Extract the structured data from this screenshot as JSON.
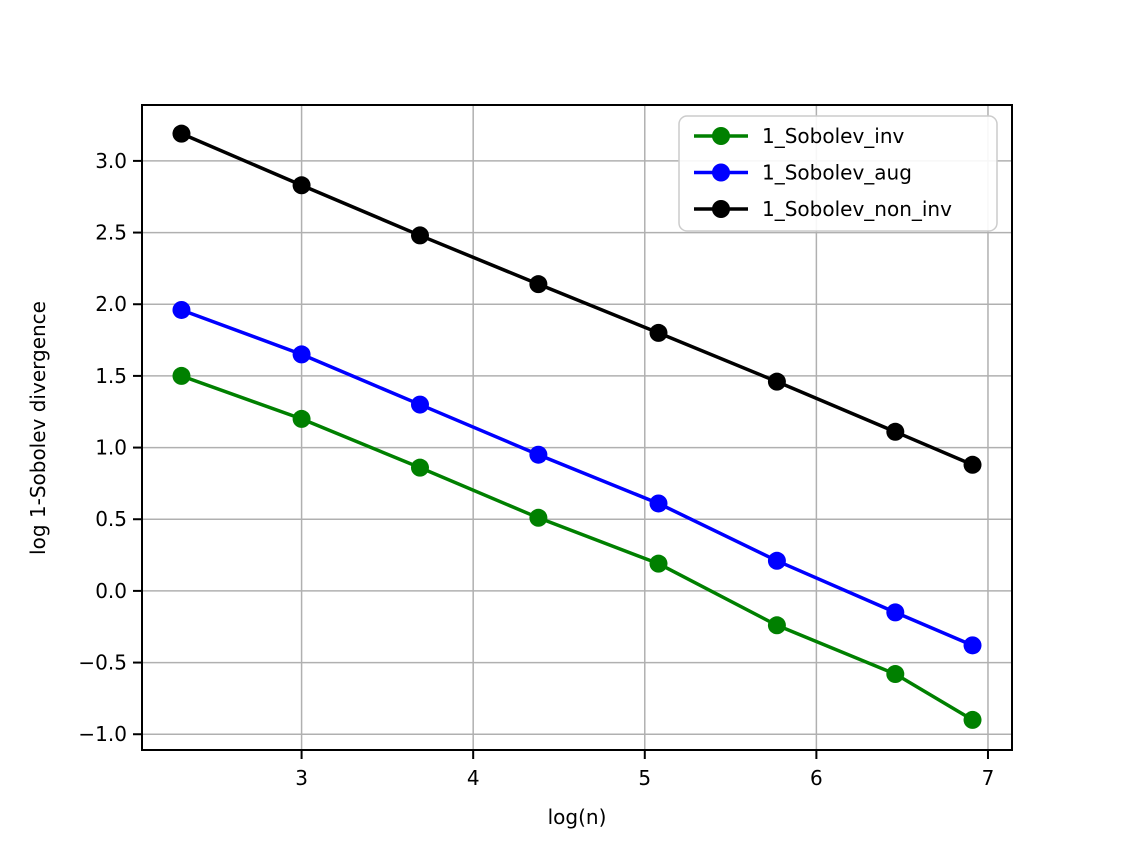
{
  "figure": {
    "background": "#ffffff"
  },
  "chart_data": {
    "type": "line",
    "title": "",
    "xlabel": "log(n)",
    "ylabel": "log 1-Sobolev divergence",
    "x": [
      2.3,
      3.0,
      3.69,
      4.38,
      5.08,
      5.77,
      6.46,
      6.91
    ],
    "series": [
      {
        "name": "1_Sobolev_inv",
        "color": "#008000",
        "values": [
          1.5,
          1.2,
          0.86,
          0.51,
          0.19,
          -0.24,
          -0.58,
          -0.9
        ]
      },
      {
        "name": "1_Sobolev_aug",
        "color": "#0000ff",
        "values": [
          1.96,
          1.65,
          1.3,
          0.95,
          0.61,
          0.21,
          -0.15,
          -0.38
        ]
      },
      {
        "name": "1_Sobolev_non_inv",
        "color": "#000000",
        "values": [
          3.19,
          2.83,
          2.48,
          2.14,
          1.8,
          1.46,
          1.11,
          0.88
        ]
      }
    ],
    "xlim": [
      2.07,
      7.14
    ],
    "ylim": [
      -1.11,
      3.39
    ],
    "xticks": {
      "values": [
        3,
        4,
        5,
        6,
        7
      ],
      "labels": [
        "3",
        "4",
        "5",
        "6",
        "7"
      ]
    },
    "yticks": {
      "values": [
        3.0,
        2.5,
        2.0,
        1.5,
        1.0,
        0.5,
        0.0,
        -0.5,
        -1.0
      ],
      "labels": [
        "3.0",
        "2.5",
        "2.0",
        "1.5",
        "1.0",
        "0.5",
        "0.0",
        "−0.5",
        "−1.0"
      ]
    },
    "grid": true,
    "grid_color": "#b0b0b0",
    "axis_color": "#000000",
    "marker": "circle",
    "marker_radius": 9,
    "line_width": 3.5,
    "legend": {
      "position": "upper right",
      "entries": [
        "1_Sobolev_inv",
        "1_Sobolev_aug",
        "1_Sobolev_non_inv"
      ],
      "border_color": "#cccccc",
      "background": "#ffffff"
    }
  }
}
